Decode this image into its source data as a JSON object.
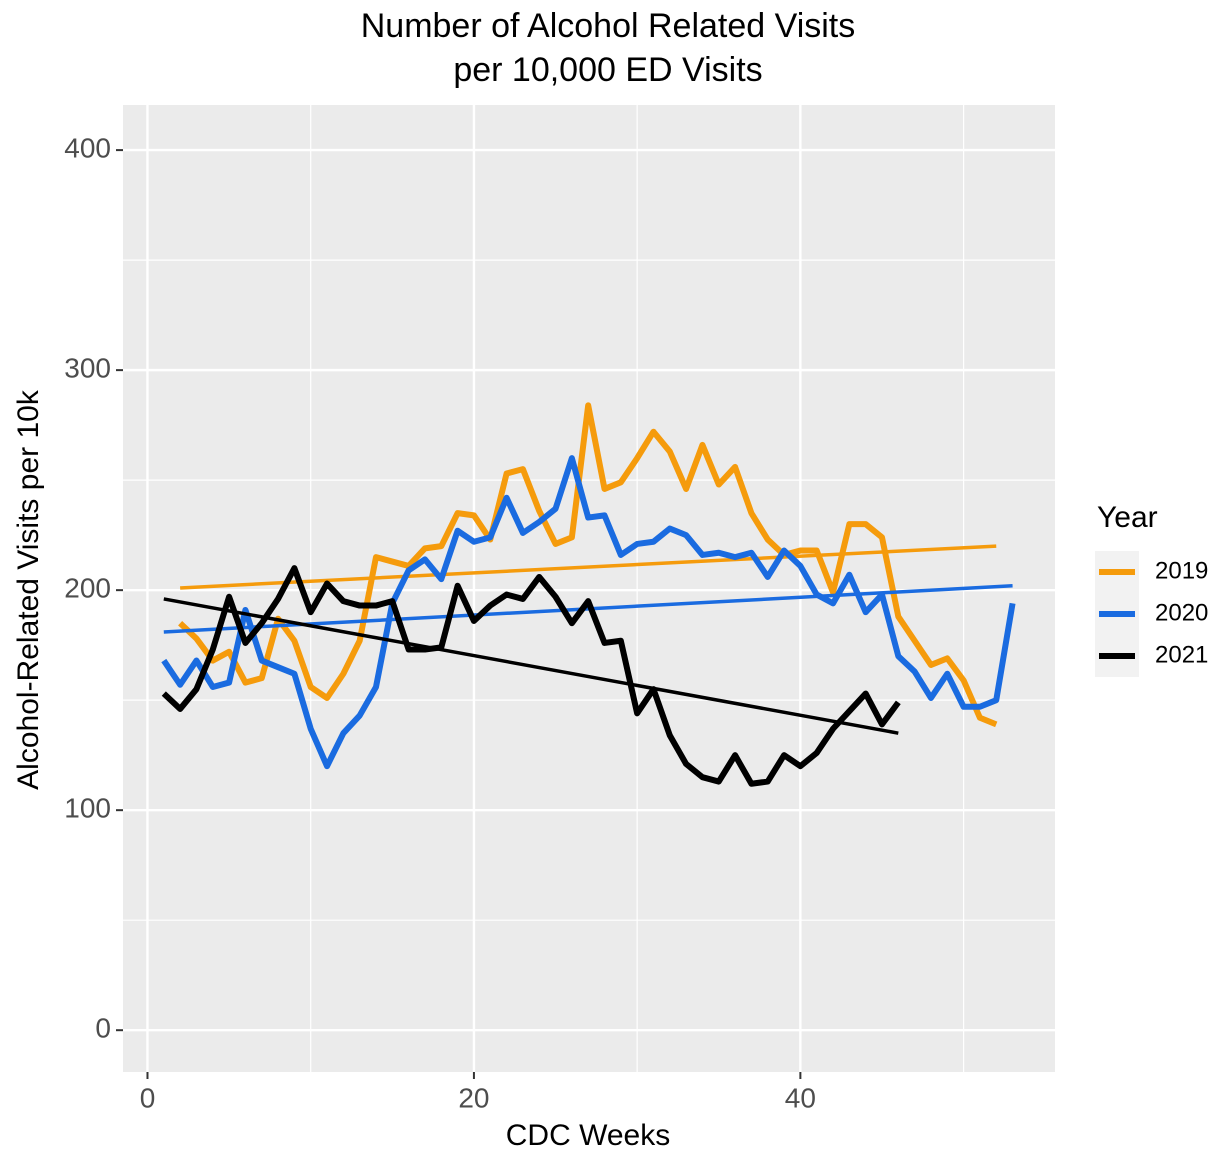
{
  "chart_data": {
    "type": "line",
    "title": [
      "Number of Alcohol Related Visits",
      "per 10,000 ED Visits"
    ],
    "x_label": "CDC Weeks",
    "y_label": "Alcohol-Related Visits per 10k",
    "legend_title": "Year",
    "legend_position": "right",
    "xlim": [
      -1.5,
      55.6
    ],
    "ylim": [
      -19,
      420.5
    ],
    "xticks": [
      0,
      20,
      40
    ],
    "yticks": [
      0,
      100,
      200,
      300,
      400
    ],
    "minor_grid_x": [
      10,
      30,
      50
    ],
    "minor_grid_y": [
      50,
      150,
      250,
      350
    ],
    "grid": true,
    "series": [
      {
        "name": "2019",
        "color": "#f59b0c",
        "x": [
          2,
          3,
          4,
          5,
          6,
          7,
          8,
          9,
          10,
          11,
          12,
          13,
          14,
          15,
          16,
          17,
          18,
          19,
          20,
          21,
          22,
          23,
          24,
          25,
          26,
          27,
          28,
          29,
          30,
          31,
          32,
          33,
          34,
          35,
          36,
          37,
          38,
          39,
          40,
          41,
          42,
          43,
          44,
          45,
          46,
          47,
          48,
          49,
          50,
          51,
          52
        ],
        "values": [
          185,
          178,
          168,
          172,
          158,
          160,
          187,
          177,
          156,
          151,
          162,
          177,
          215,
          213,
          211,
          219,
          220,
          235,
          234,
          223,
          253,
          255,
          236,
          221,
          224,
          284,
          246,
          249,
          260,
          272,
          263,
          246,
          266,
          248,
          256,
          235,
          223,
          216,
          218,
          218,
          199,
          230,
          230,
          224,
          188,
          177,
          166,
          169,
          159,
          142,
          139
        ],
        "trend_x": [
          2,
          52
        ],
        "trend_values": [
          201,
          220
        ]
      },
      {
        "name": "2020",
        "color": "#1a6be0",
        "x": [
          1,
          2,
          3,
          4,
          5,
          6,
          7,
          8,
          9,
          10,
          11,
          12,
          13,
          14,
          15,
          16,
          17,
          18,
          19,
          20,
          21,
          22,
          23,
          24,
          25,
          26,
          27,
          28,
          29,
          30,
          31,
          32,
          33,
          34,
          35,
          36,
          37,
          38,
          39,
          40,
          41,
          42,
          43,
          44,
          45,
          46,
          47,
          48,
          49,
          50,
          51,
          52,
          53
        ],
        "values": [
          168,
          157,
          168,
          156,
          158,
          191,
          168,
          165,
          162,
          137,
          120,
          135,
          143,
          156,
          194,
          209,
          214,
          205,
          227,
          222,
          224,
          242,
          226,
          231,
          237,
          260,
          233,
          234,
          216,
          221,
          222,
          228,
          225,
          216,
          217,
          215,
          217,
          206,
          218,
          211,
          198,
          194,
          207,
          190,
          198,
          170,
          163,
          151,
          162,
          147,
          147,
          150,
          194
        ],
        "trend_x": [
          1,
          53
        ],
        "trend_values": [
          181,
          202
        ]
      },
      {
        "name": "2021",
        "color": "#000000",
        "x": [
          1,
          2,
          3,
          4,
          5,
          6,
          7,
          8,
          9,
          10,
          11,
          12,
          13,
          14,
          15,
          16,
          17,
          18,
          19,
          20,
          21,
          22,
          23,
          24,
          25,
          26,
          27,
          28,
          29,
          30,
          31,
          32,
          33,
          34,
          35,
          36,
          37,
          38,
          39,
          40,
          41,
          42,
          43,
          44,
          45,
          46
        ],
        "values": [
          153,
          146,
          155,
          173,
          197,
          176,
          185,
          196,
          210,
          190,
          203,
          195,
          193,
          193,
          195,
          173,
          173,
          174,
          202,
          186,
          193,
          198,
          196,
          206,
          197,
          185,
          195,
          176,
          177,
          144,
          155,
          134,
          121,
          115,
          113,
          125,
          112,
          113,
          125,
          120,
          126,
          137,
          145,
          153,
          139,
          149
        ],
        "trend_x": [
          1,
          46
        ],
        "trend_values": [
          196,
          135
        ]
      }
    ]
  }
}
